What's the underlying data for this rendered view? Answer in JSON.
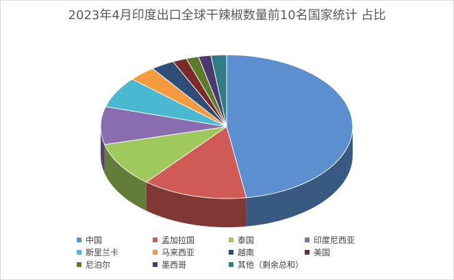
{
  "chart_data": {
    "type": "pie",
    "title": "2023年4月印度出口全球干辣椒数量前10名国家统计 占比",
    "legend_position": "bottom",
    "slices": [
      {
        "name": "中国",
        "value": 47.5,
        "color": "#5b8fd0"
      },
      {
        "name": "孟加拉国",
        "value": 13.5,
        "color": "#d05a56"
      },
      {
        "name": "泰国",
        "value": 10.0,
        "color": "#9fc95c"
      },
      {
        "name": "印度尼西亚",
        "value": 8.5,
        "color": "#8a6cb0"
      },
      {
        "name": "斯里兰卡",
        "value": 7.0,
        "color": "#4bb8d1"
      },
      {
        "name": "马来西亚",
        "value": 3.5,
        "color": "#f59b3f"
      },
      {
        "name": "越南",
        "value": 3.0,
        "color": "#2f4d76"
      },
      {
        "name": "美国",
        "value": 1.8,
        "color": "#7b2b2b"
      },
      {
        "name": "尼泊尔",
        "value": 1.6,
        "color": "#5e7a2c"
      },
      {
        "name": "墨西哥",
        "value": 1.6,
        "color": "#4a3a70"
      },
      {
        "name": "其他（剩余总和）",
        "value": 2.0,
        "color": "#2f7c86"
      }
    ]
  }
}
